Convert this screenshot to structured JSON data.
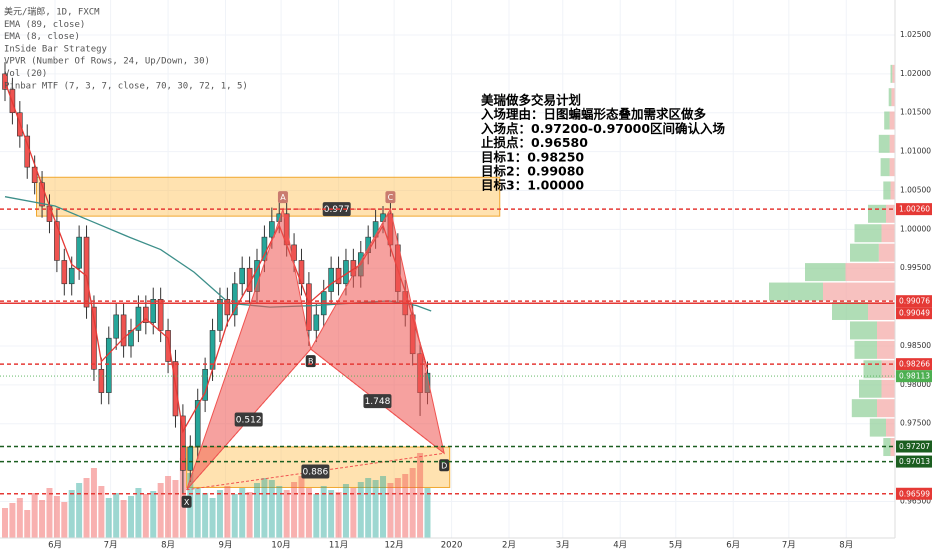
{
  "chart_data": {
    "type": "candlestick",
    "title": "美元/瑞郎, 1D, FXCM",
    "series": [
      {
        "name": "EMA (89, close)",
        "color": "#3d8f8a",
        "x": [
          -27,
          0,
          20,
          40,
          57,
          75,
          94,
          116,
          140,
          160,
          180,
          195,
          203
        ],
        "values": [
          1.0042,
          1.003,
          1.001,
          0.999,
          0.9974,
          0.9945,
          0.9905,
          0.99,
          0.9902,
          0.9905,
          0.9908,
          0.9902,
          0.9895
        ]
      },
      {
        "name": "EMA (8, close)",
        "color": "#e53935",
        "x": [
          -27,
          -15,
          -3,
          9,
          17,
          25,
          37,
          49,
          61,
          69,
          81,
          93,
          105,
          121,
          137,
          149,
          165,
          177,
          189,
          201
        ],
        "values": [
          1.019,
          1.011,
          1.003,
          0.9955,
          0.994,
          0.983,
          0.986,
          0.9885,
          0.986,
          0.974,
          0.979,
          0.988,
          0.993,
          1.0005,
          0.9905,
          0.993,
          0.9955,
          1.0005,
          0.992,
          0.982
        ]
      }
    ],
    "indicators": [
      "InSide Bar Strategy",
      "VPVR (Number Of Rows, 24, Up/Down, 30)",
      "Vol (20)",
      "Pinbar MTF (7, 3, 7, close, 70, 30, 72, 1, 5)"
    ],
    "plan": [
      "美瑞做多交易计划",
      "入场理由：日图蝙蝠形态叠加需求区做多",
      "入场点：0.97200-0.97000区间确认入场",
      "止损点：0.96580",
      "目标1：0.98250",
      "目标2：0.99080",
      "目标3：1.00000"
    ],
    "xlim": [
      -29.7,
      453.3
    ],
    "xticks": [
      {
        "value": 0,
        "label": "6月"
      },
      {
        "value": 30,
        "label": "7月"
      },
      {
        "value": 61,
        "label": "8月"
      },
      {
        "value": 92,
        "label": "9月"
      },
      {
        "value": 122,
        "label": "10月"
      },
      {
        "value": 153,
        "label": "11月"
      },
      {
        "value": 183,
        "label": "12月"
      },
      {
        "value": 214,
        "label": "2020"
      },
      {
        "value": 245,
        "label": "2月"
      },
      {
        "value": 274,
        "label": "3月"
      },
      {
        "value": 305,
        "label": "4月"
      },
      {
        "value": 335,
        "label": "5月"
      },
      {
        "value": 366,
        "label": "6月"
      },
      {
        "value": 396,
        "label": "7月"
      },
      {
        "value": 427,
        "label": "8月"
      }
    ],
    "ylim": [
      0.9603,
      1.0295
    ],
    "yticks": [
      {
        "value": 0.965,
        "label": "0.96500"
      },
      {
        "value": 0.975,
        "label": "0.97500"
      },
      {
        "value": 0.98,
        "label": "0.98000"
      },
      {
        "value": 0.985,
        "label": "0.98500"
      },
      {
        "value": 0.995,
        "label": "0.99500"
      },
      {
        "value": 1,
        "label": "1.00000"
      },
      {
        "value": 1.005,
        "label": "1.00500"
      },
      {
        "value": 1.01,
        "label": "1.01000"
      },
      {
        "value": 1.015,
        "label": "1.01500"
      },
      {
        "value": 1.02,
        "label": "1.02000"
      },
      {
        "value": 1.025,
        "label": "1.02500"
      }
    ],
    "grid": true,
    "up_color": "#26a69a",
    "down_color": "#ef5350",
    "x": [
      -27,
      -23,
      -19,
      -15,
      -11,
      -7,
      -3,
      1,
      5,
      9,
      13,
      17,
      21,
      25,
      29,
      33,
      37,
      41,
      45,
      49,
      53,
      57,
      61,
      65,
      69,
      73,
      77,
      81,
      85,
      89,
      93,
      97,
      101,
      105,
      109,
      113,
      117,
      121,
      125,
      129,
      133,
      137,
      141,
      145,
      149,
      153,
      157,
      161,
      165,
      169,
      173,
      177,
      181,
      185,
      189,
      193,
      197,
      201
    ],
    "open": [
      1.02,
      1.018,
      1.015,
      1.012,
      1.008,
      1.006,
      1.003,
      1.001,
      0.996,
      0.993,
      0.995,
      0.999,
      0.99,
      0.982,
      0.979,
      0.986,
      0.989,
      0.985,
      0.987,
      0.99,
      0.988,
      0.991,
      0.987,
      0.983,
      0.976,
      0.969,
      0.972,
      0.978,
      0.982,
      0.987,
      0.991,
      0.989,
      0.993,
      0.995,
      0.992,
      0.996,
      0.999,
      1.001,
      1.002,
      0.998,
      0.996,
      0.993,
      0.987,
      0.989,
      0.992,
      0.995,
      0.993,
      0.996,
      0.994,
      0.997,
      0.999,
      1.001,
      1.002,
      0.998,
      0.992,
      0.989,
      0.984,
      0.979
    ],
    "high": [
      1.0215,
      1.0195,
      1.0165,
      1.0135,
      1.0095,
      1.0075,
      1.0045,
      1.0025,
      0.9975,
      0.9965,
      1.0005,
      1.0005,
      0.9915,
      0.9835,
      0.9875,
      0.9905,
      0.9905,
      0.9885,
      0.9915,
      0.9915,
      0.9925,
      0.9925,
      0.9885,
      0.9845,
      0.9775,
      0.9735,
      0.9795,
      0.9835,
      0.9885,
      0.9925,
      0.9925,
      0.9945,
      0.9965,
      0.9965,
      0.9975,
      1.0005,
      1.0028,
      1.0035,
      1.0035,
      0.9995,
      0.9975,
      0.9945,
      0.9905,
      0.9935,
      0.9965,
      0.9965,
      0.9975,
      0.9975,
      0.9985,
      1.0005,
      1.0025,
      1.003,
      1.0035,
      0.9995,
      0.9935,
      0.9905,
      0.9855,
      0.983
    ],
    "low": [
      1.0165,
      1.0135,
      1.0105,
      1.0065,
      1.0045,
      1.0015,
      0.9995,
      0.9945,
      0.9915,
      0.9915,
      0.9935,
      0.9885,
      0.9805,
      0.9775,
      0.9775,
      0.9845,
      0.9835,
      0.9835,
      0.9855,
      0.9865,
      0.9865,
      0.9855,
      0.9815,
      0.9745,
      0.966,
      0.9675,
      0.9705,
      0.9765,
      0.9805,
      0.9855,
      0.9875,
      0.9875,
      0.9915,
      0.9905,
      0.9905,
      0.9945,
      0.9975,
      0.9995,
      0.9965,
      0.9945,
      0.9915,
      0.985,
      0.9855,
      0.9875,
      0.9905,
      0.9915,
      0.9915,
      0.9925,
      0.9925,
      0.9955,
      0.9975,
      0.9995,
      0.9965,
      0.9905,
      0.9875,
      0.9825,
      0.976,
      0.9775
    ],
    "close": [
      1.018,
      1.015,
      1.012,
      1.008,
      1.006,
      1.003,
      1.001,
      0.996,
      0.993,
      0.995,
      0.999,
      0.99,
      0.982,
      0.979,
      0.986,
      0.989,
      0.985,
      0.987,
      0.99,
      0.988,
      0.991,
      0.987,
      0.983,
      0.976,
      0.969,
      0.972,
      0.978,
      0.982,
      0.987,
      0.991,
      0.989,
      0.993,
      0.995,
      0.992,
      0.996,
      0.999,
      1.001,
      1.002,
      0.998,
      0.996,
      0.993,
      0.987,
      0.989,
      0.992,
      0.995,
      0.993,
      0.996,
      0.994,
      0.997,
      0.999,
      1.001,
      1.002,
      0.998,
      0.992,
      0.989,
      0.984,
      0.979,
      0.9815
    ],
    "volume": [
      30,
      35,
      40,
      28,
      45,
      38,
      50,
      42,
      36,
      48,
      55,
      60,
      70,
      52,
      40,
      45,
      38,
      42,
      50,
      44,
      47,
      55,
      62,
      58,
      80,
      65,
      50,
      45,
      40,
      48,
      52,
      44,
      50,
      46,
      55,
      60,
      58,
      52,
      48,
      56,
      62,
      50,
      44,
      52,
      48,
      46,
      54,
      50,
      56,
      60,
      58,
      62,
      55,
      60,
      64,
      70,
      85,
      50
    ],
    "volume_profile": {
      "up_color": "#8fcf97",
      "down_color": "#f4a6a4",
      "prices": [
        1.02,
        1.017,
        1.014,
        1.011,
        1.008,
        1.005,
        1.002,
        0.9995,
        0.997,
        0.9945,
        0.992,
        0.9895,
        0.987,
        0.9845,
        0.982,
        0.9795,
        0.977,
        0.9745,
        0.972
      ],
      "up": [
        2,
        3,
        6,
        12,
        10,
        8,
        20,
        30,
        32,
        45,
        60,
        40,
        30,
        25,
        20,
        25,
        28,
        18,
        8
      ],
      "down": [
        3,
        4,
        6,
        6,
        6,
        5,
        10,
        15,
        18,
        55,
        80,
        30,
        20,
        20,
        15,
        15,
        20,
        10,
        5
      ]
    },
    "price_lines": [
      {
        "value": 1.0026,
        "label": "1.00260",
        "color": "#e53935",
        "style": "dashed"
      },
      {
        "value": 0.99076,
        "label": "0.99076",
        "color": "#e53935",
        "style": "dashed"
      },
      {
        "value": 0.99049,
        "label": "0.99049",
        "color": "#e53935",
        "style": "solid"
      },
      {
        "value": 0.98266,
        "label": "0.98266",
        "color": "#e53935",
        "style": "dashed"
      },
      {
        "value": 0.98113,
        "label": "0.98113",
        "color": "#4caf50",
        "style": "dotted"
      },
      {
        "value": 0.97207,
        "label": "0.97207",
        "color": "#1b5e20",
        "style": "dashed"
      },
      {
        "value": 0.97013,
        "label": "0.97013",
        "color": "#1b5e20",
        "style": "dashed"
      },
      {
        "value": 0.96599,
        "label": "0.96599",
        "color": "#e53935",
        "style": "dashed"
      }
    ],
    "zones": [
      {
        "x": [
          -10,
          240
        ],
        "y": [
          1.0017,
          1.0067
        ]
      },
      {
        "x": [
          71,
          213
        ],
        "y": [
          0.9668,
          0.972
        ]
      }
    ],
    "pattern": {
      "color": "#ef5350",
      "points": [
        {
          "label": "X",
          "x": 71,
          "y": 0.9665
        },
        {
          "label": "A",
          "x": 123,
          "y": 1.0026
        },
        {
          "label": "B",
          "x": 138,
          "y": 0.9846
        },
        {
          "label": "C",
          "x": 181,
          "y": 1.0026
        },
        {
          "label": "D",
          "x": 210,
          "y": 0.9712
        }
      ],
      "ratios": [
        0.977,
        0.512,
        1.748,
        0.886
      ]
    }
  }
}
